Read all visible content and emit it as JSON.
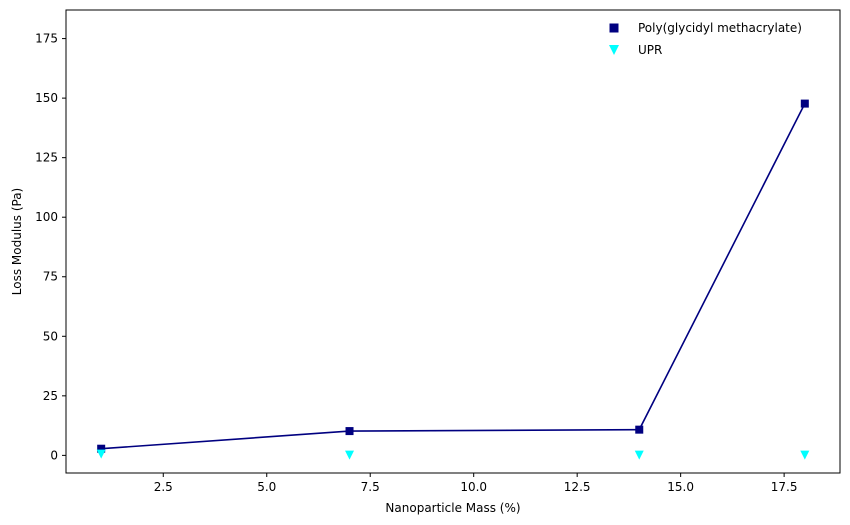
{
  "chart_data": {
    "type": "scatter",
    "title": "",
    "xlabel": "Nanoparticle Mass (%)",
    "ylabel": "Loss Modulus (Pa)",
    "xlim": [
      0.15,
      18.85
    ],
    "ylim": [
      -7.4,
      187.0
    ],
    "x_ticks": [
      2.5,
      5.0,
      7.5,
      10.0,
      12.5,
      15.0,
      17.5
    ],
    "x_tick_labels": [
      "2.5",
      "5.0",
      "7.5",
      "10.0",
      "12.5",
      "15.0",
      "17.5"
    ],
    "y_ticks": [
      0,
      25,
      50,
      75,
      100,
      125,
      150,
      175
    ],
    "y_tick_labels": [
      "0",
      "25",
      "50",
      "75",
      "100",
      "125",
      "150",
      "175"
    ],
    "grid": false,
    "legend_position": "top-right",
    "series": [
      {
        "name": "Poly(glycidyl methacrylate)",
        "marker": "square",
        "color": "#000080",
        "connected": true,
        "x": [
          1,
          7,
          14,
          18
        ],
        "y": [
          2.8,
          10.2,
          10.8,
          147.7
        ]
      },
      {
        "name": "UPR",
        "marker": "triangle-down",
        "color": "#00FFFF",
        "connected": false,
        "x": [
          1,
          7,
          14,
          18
        ],
        "y": [
          0.5,
          0.1,
          0.1,
          0.1
        ]
      }
    ]
  }
}
